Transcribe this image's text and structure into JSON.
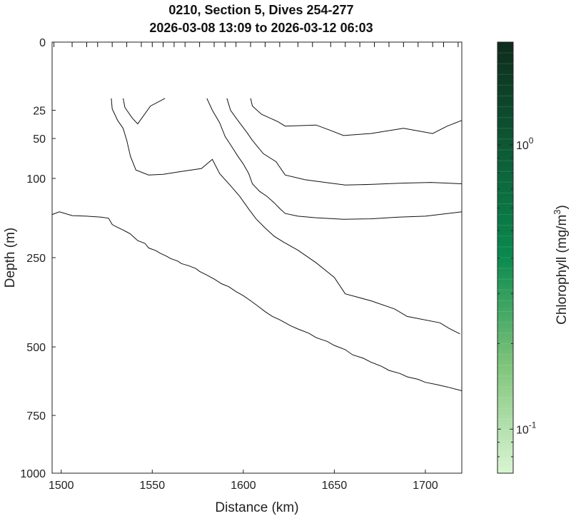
{
  "chart_data": {
    "type": "contour",
    "title": "0210, Section 5, Dives 254-277",
    "subtitle": "2026-03-08 13:09 to 2026-03-12 06:03",
    "xlabel": "Distance (km)",
    "ylabel": "Depth (m)",
    "xlim": [
      1495,
      1720
    ],
    "ylim": [
      0,
      1000
    ],
    "y_scale": "sqrt",
    "reverse_y": true,
    "x_ticks": [
      1500,
      1550,
      1600,
      1650,
      1700
    ],
    "y_ticks": [
      0,
      25,
      50,
      100,
      250,
      500,
      750,
      1000
    ],
    "colorbar": {
      "label_main": "Chlorophyll (mg/m",
      "label_exp": "3",
      "label_close": ")",
      "scale": "log",
      "range": [
        0.07,
        2.3
      ],
      "ticks": [
        {
          "value": 1.0,
          "base": "10",
          "exp": "0"
        },
        {
          "value": 0.1,
          "base": "10",
          "exp": "-1"
        }
      ],
      "color_low": "#d9f5d2",
      "color_mid": "#0a8a4e",
      "color_high": "#0e2c1c"
    },
    "dive_markers_x": [
      1496,
      1506,
      1514,
      1520,
      1528,
      1536,
      1544,
      1550,
      1556,
      1562,
      1568,
      1576,
      1584,
      1590,
      1596,
      1604,
      1612,
      1620,
      1630,
      1638,
      1648,
      1656,
      1664,
      1672,
      1680,
      1688,
      1696,
      1704,
      1710,
      1718
    ],
    "contours": [
      {
        "points": [
          [
            1527.5,
            17
          ],
          [
            1528,
            24
          ],
          [
            1531,
            33
          ],
          [
            1534,
            40
          ],
          [
            1536,
            52
          ],
          [
            1538,
            70
          ],
          [
            1541,
            88
          ],
          [
            1548,
            95
          ],
          [
            1556,
            94
          ],
          [
            1566,
            90
          ],
          [
            1577,
            86
          ],
          [
            1583,
            74
          ],
          [
            1587,
            93
          ],
          [
            1593,
            111
          ],
          [
            1598,
            128
          ],
          [
            1603,
            150
          ],
          [
            1607,
            168
          ],
          [
            1612,
            186
          ],
          [
            1617,
            203
          ],
          [
            1622,
            215
          ],
          [
            1630,
            233
          ],
          [
            1640,
            262
          ],
          [
            1650,
            298
          ],
          [
            1656,
            341
          ],
          [
            1670,
            360
          ],
          [
            1683,
            383
          ],
          [
            1690,
            405
          ],
          [
            1708,
            424
          ],
          [
            1713,
            441
          ],
          [
            1719,
            458
          ]
        ]
      },
      {
        "points": [
          [
            1534,
            17
          ],
          [
            1535,
            23
          ],
          [
            1539,
            31
          ],
          [
            1542,
            36
          ],
          [
            1549,
            22
          ],
          [
            1557,
            17
          ]
        ]
      },
      {
        "points": [
          [
            1580,
            17
          ],
          [
            1583,
            25
          ],
          [
            1587,
            35
          ],
          [
            1590,
            48
          ],
          [
            1594,
            60
          ],
          [
            1597,
            70
          ],
          [
            1600,
            80
          ],
          [
            1603,
            93
          ],
          [
            1605,
            108
          ],
          [
            1609,
            120
          ],
          [
            1613,
            128
          ],
          [
            1617,
            139
          ],
          [
            1620,
            149
          ],
          [
            1623,
            158
          ],
          [
            1630,
            163
          ],
          [
            1640,
            166
          ],
          [
            1655,
            169
          ],
          [
            1670,
            168
          ],
          [
            1685,
            165
          ],
          [
            1700,
            163
          ],
          [
            1720,
            155
          ]
        ]
      },
      {
        "points": [
          [
            1591,
            17
          ],
          [
            1593,
            25
          ],
          [
            1597,
            33
          ],
          [
            1602,
            44
          ],
          [
            1605,
            52
          ],
          [
            1611,
            67
          ],
          [
            1618,
            77
          ],
          [
            1623,
            95
          ],
          [
            1634,
            102
          ],
          [
            1645,
            106
          ],
          [
            1656,
            110
          ],
          [
            1670,
            109
          ],
          [
            1687,
            107
          ],
          [
            1703,
            106
          ],
          [
            1720,
            108
          ]
        ]
      },
      {
        "points": [
          [
            1604,
            17
          ],
          [
            1605,
            22
          ],
          [
            1610,
            28
          ],
          [
            1619,
            34
          ],
          [
            1623,
            38
          ],
          [
            1640,
            37
          ],
          [
            1648,
            42
          ],
          [
            1655,
            47
          ],
          [
            1670,
            45
          ],
          [
            1688,
            40
          ],
          [
            1704,
            45
          ],
          [
            1712,
            38
          ],
          [
            1720,
            33
          ]
        ]
      },
      {
        "points": [
          [
            1495,
            160
          ],
          [
            1499,
            155
          ],
          [
            1506,
            162
          ],
          [
            1514,
            163
          ],
          [
            1522,
            165
          ],
          [
            1526,
            167
          ],
          [
            1528,
            179
          ],
          [
            1530,
            183
          ],
          [
            1534,
            190
          ],
          [
            1536,
            194
          ],
          [
            1538,
            198
          ],
          [
            1540,
            205
          ],
          [
            1542,
            212
          ],
          [
            1546,
            218
          ],
          [
            1548,
            228
          ],
          [
            1552,
            234
          ],
          [
            1554,
            239
          ],
          [
            1558,
            247
          ],
          [
            1560,
            252
          ],
          [
            1564,
            258
          ],
          [
            1566,
            264
          ],
          [
            1570,
            269
          ],
          [
            1574,
            276
          ],
          [
            1576,
            283
          ],
          [
            1580,
            292
          ],
          [
            1584,
            302
          ],
          [
            1588,
            314
          ],
          [
            1592,
            322
          ],
          [
            1596,
            335
          ],
          [
            1600,
            346
          ],
          [
            1604,
            360
          ],
          [
            1608,
            375
          ],
          [
            1612,
            391
          ],
          [
            1616,
            405
          ],
          [
            1620,
            415
          ],
          [
            1626,
            433
          ],
          [
            1630,
            443
          ],
          [
            1636,
            456
          ],
          [
            1640,
            470
          ],
          [
            1646,
            482
          ],
          [
            1650,
            495
          ],
          [
            1656,
            509
          ],
          [
            1660,
            526
          ],
          [
            1666,
            538
          ],
          [
            1670,
            551
          ],
          [
            1676,
            566
          ],
          [
            1680,
            580
          ],
          [
            1686,
            591
          ],
          [
            1690,
            603
          ],
          [
            1696,
            612
          ],
          [
            1700,
            623
          ],
          [
            1706,
            631
          ],
          [
            1712,
            640
          ],
          [
            1720,
            654
          ]
        ]
      }
    ]
  }
}
